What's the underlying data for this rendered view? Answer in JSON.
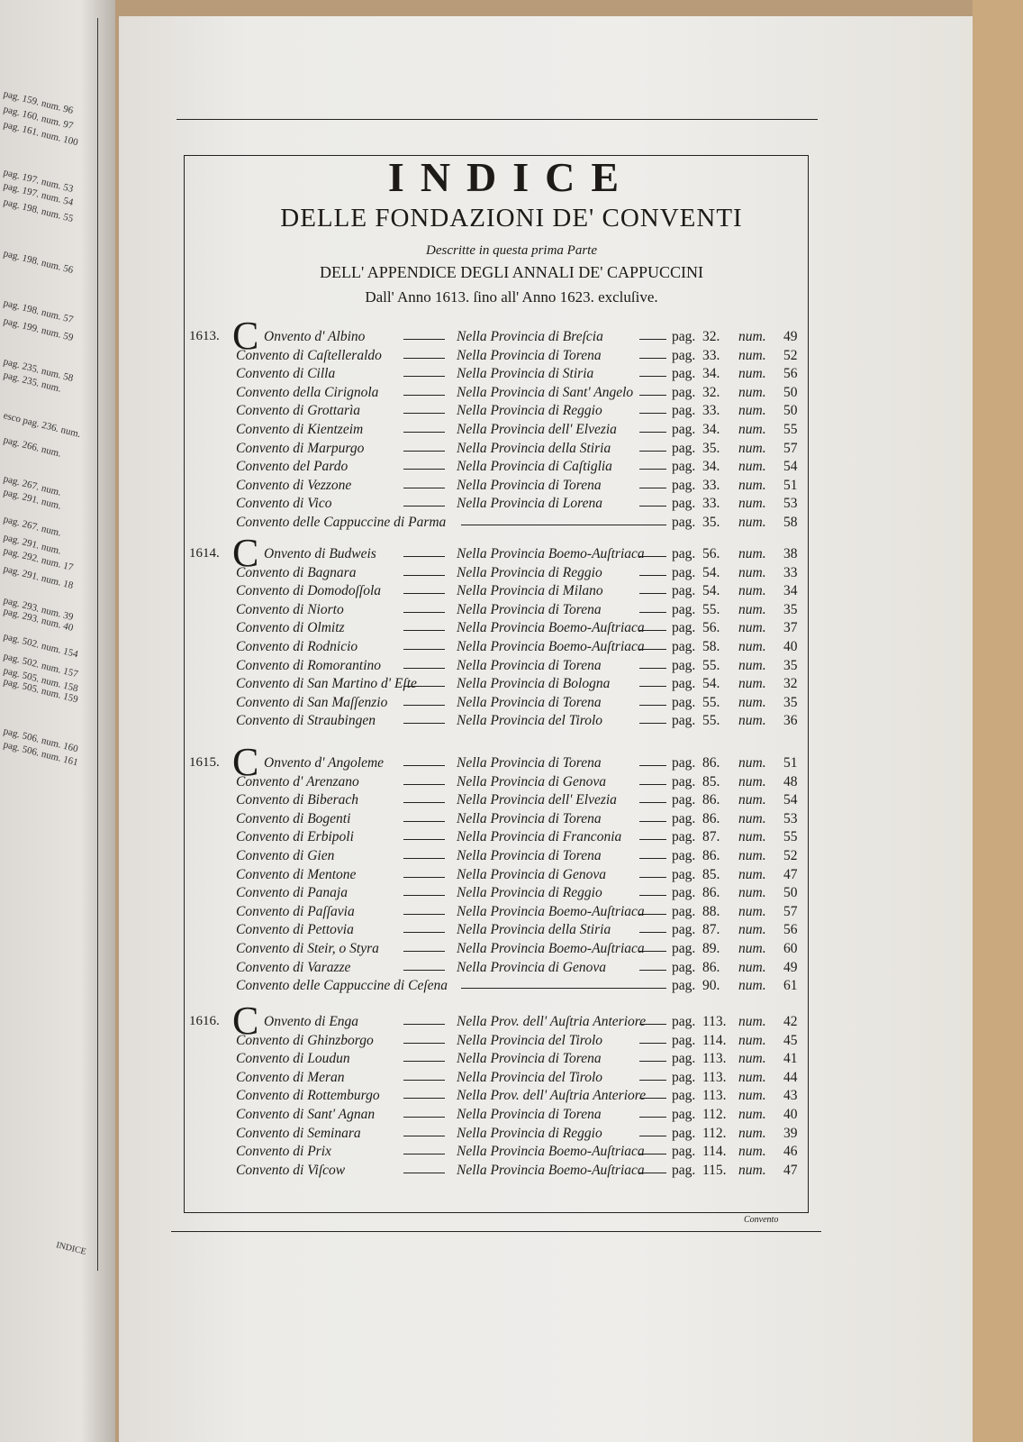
{
  "header": {
    "title": "INDICE",
    "subtitle": "DELLE FONDAZIONI DE' CONVENTI",
    "description": "Descritte in questa prima Parte",
    "appendix": "DELL' APPENDICE DEGLI ANNALI DE' CAPPUCCINI",
    "years": "Dall' Anno 1613. ſino all' Anno 1623. excluſive."
  },
  "sections": [
    {
      "year": "1613.",
      "initial": "C",
      "entries": [
        {
          "convent": "Onvento d' Albino",
          "province": "Nella Provincia di Breſcia",
          "pag": "32.",
          "num": "49"
        },
        {
          "convent": "Convento di Caſtelleraldo",
          "province": "Nella Provincia di Torena",
          "pag": "33.",
          "num": "52"
        },
        {
          "convent": "Convento di Cilla",
          "province": "Nella Provincia di Stiria",
          "pag": "34.",
          "num": "56"
        },
        {
          "convent": "Convento della Cirignola",
          "province": "Nella Provincia di Sant' Angelo",
          "pag": "32.",
          "num": "50"
        },
        {
          "convent": "Convento di Grottarìa",
          "province": "Nella Provincia di Reggio",
          "pag": "33.",
          "num": "50"
        },
        {
          "convent": "Convento di Kientzeim",
          "province": "Nella Provincia dell' Elvezia",
          "pag": "34.",
          "num": "55"
        },
        {
          "convent": "Convento di Marpurgo",
          "province": "Nella Provincia della Stiria",
          "pag": "35.",
          "num": "57"
        },
        {
          "convent": "Convento del Pardo",
          "province": "Nella Provincia di Caſtiglia",
          "pag": "34.",
          "num": "54"
        },
        {
          "convent": "Convento di Vezzone",
          "province": "Nella Provincia di Torena",
          "pag": "33.",
          "num": "51"
        },
        {
          "convent": "Convento di Vico",
          "province": "Nella Provincia di Lorena",
          "pag": "33.",
          "num": "53"
        },
        {
          "convent": "Convento delle Cappuccine di Parma",
          "province": "",
          "pag": "35.",
          "num": "58"
        }
      ]
    },
    {
      "year": "1614.",
      "initial": "C",
      "entries": [
        {
          "convent": "Onvento di Budweis",
          "province": "Nella Provincia Boemo-Auſtriaca",
          "pag": "56.",
          "num": "38"
        },
        {
          "convent": "Convento di Bagnara",
          "province": "Nella Provincia di Reggio",
          "pag": "54.",
          "num": "33"
        },
        {
          "convent": "Convento di Domodoſſola",
          "province": "Nella Provincia di Milano",
          "pag": "54.",
          "num": "34"
        },
        {
          "convent": "Convento di Niorto",
          "province": "Nella Provincia di Torena",
          "pag": "55.",
          "num": "35"
        },
        {
          "convent": "Convento di Olmitz",
          "province": "Nella Provincia Boemo-Auſtriaca",
          "pag": "56.",
          "num": "37"
        },
        {
          "convent": "Convento di Rodnicio",
          "province": "Nella Provincia Boemo-Auſtriaca",
          "pag": "58.",
          "num": "40"
        },
        {
          "convent": "Convento di Romorantino",
          "province": "Nella Provincia di Torena",
          "pag": "55.",
          "num": "35"
        },
        {
          "convent": "Convento di San Martino d' Eſte",
          "province": "Nella Provincia di Bologna",
          "pag": "54.",
          "num": "32"
        },
        {
          "convent": "Convento di San Maſſenzio",
          "province": "Nella Provincia di Torena",
          "pag": "55.",
          "num": "35"
        },
        {
          "convent": "Convento di Straubingen",
          "province": "Nella Provincia del Tirolo",
          "pag": "55.",
          "num": "36"
        }
      ]
    },
    {
      "year": "1615.",
      "initial": "C",
      "entries": [
        {
          "convent": "Onvento d' Angoleme",
          "province": "Nella Provincia di Torena",
          "pag": "86.",
          "num": "51"
        },
        {
          "convent": "Convento d' Arenzano",
          "province": "Nella Provincia di Genova",
          "pag": "85.",
          "num": "48"
        },
        {
          "convent": "Convento di Biberach",
          "province": "Nella Provincia dell' Elvezia",
          "pag": "86.",
          "num": "54"
        },
        {
          "convent": "Convento di Bogenti",
          "province": "Nella Provincia di Torena",
          "pag": "86.",
          "num": "53"
        },
        {
          "convent": "Convento di Erbipoli",
          "province": "Nella Provincia di Franconia",
          "pag": "87.",
          "num": "55"
        },
        {
          "convent": "Convento di Gien",
          "province": "Nella Provincia di Torena",
          "pag": "86.",
          "num": "52"
        },
        {
          "convent": "Convento di Mentone",
          "province": "Nella Provincia di Genova",
          "pag": "85.",
          "num": "47"
        },
        {
          "convent": "Convento di Panaja",
          "province": "Nella Provincia di Reggio",
          "pag": "86.",
          "num": "50"
        },
        {
          "convent": "Convento di Paſſavia",
          "province": "Nella Provincia Boemo-Auſtriaca",
          "pag": "88.",
          "num": "57"
        },
        {
          "convent": "Convento di Pettovia",
          "province": "Nella Provincia della Stiria",
          "pag": "87.",
          "num": "56"
        },
        {
          "convent": "Convento di Steir, o Styra",
          "province": "Nella Provincia Boemo-Auſtriaca",
          "pag": "89.",
          "num": "60"
        },
        {
          "convent": "Convento di Varazze",
          "province": "Nella Provincia di Genova",
          "pag": "86.",
          "num": "49"
        },
        {
          "convent": "Convento delle Cappuccine di Ceſena",
          "province": "",
          "pag": "90.",
          "num": "61"
        }
      ]
    },
    {
      "year": "1616.",
      "initial": "C",
      "entries": [
        {
          "convent": "Onvento di Enga",
          "province": "Nella Prov. dell' Auſtria Anteriore",
          "pag": "113.",
          "num": "42"
        },
        {
          "convent": "Convento di Ghinzborgo",
          "province": "Nella Provincia del Tirolo",
          "pag": "114.",
          "num": "45"
        },
        {
          "convent": "Convento di Loudun",
          "province": "Nella Provincia di Torena",
          "pag": "113.",
          "num": "41"
        },
        {
          "convent": "Convento di Meran",
          "province": "Nella Provincia del Tirolo",
          "pag": "113.",
          "num": "44"
        },
        {
          "convent": "Convento di Rottemburgo",
          "province": "Nella Prov. dell' Auſtria Anteriore",
          "pag": "113.",
          "num": "43"
        },
        {
          "convent": "Convento di Sant' Agnan",
          "province": "Nella Provincia di Torena",
          "pag": "112.",
          "num": "40"
        },
        {
          "convent": "Convento di Seminara",
          "province": "Nella Provincia di Reggio",
          "pag": "112.",
          "num": "39"
        },
        {
          "convent": "Convento di Prix",
          "province": "Nella Provincia Boemo-Auſtriaca",
          "pag": "114.",
          "num": "46"
        },
        {
          "convent": "Convento di Viſcow",
          "province": "Nella Provincia Boemo-Auſtriaca",
          "pag": "115.",
          "num": "47"
        }
      ]
    }
  ],
  "labels": {
    "pag": "pag.",
    "num": "num."
  },
  "catchword": "Convento",
  "left_page": {
    "items": [
      "pag. 159. num. 96",
      "pag. 160. num. 97",
      "pag. 161. num. 100",
      "pag. 197. num. 53",
      "pag. 197. num. 54",
      "pag. 198. num. 55",
      "pag. 198. num. 56",
      "pag. 198. num. 57",
      "pag. 199. num. 59",
      "pag. 235. num. 58",
      "pag. 235. num.",
      "esco pag. 236. num.",
      "pag. 266. num.",
      "pag. 267. num.",
      "pag. 267. num.",
      "pag. 291. num.",
      "pag. 291. num.",
      "pag. 292. num. 17",
      "pag. 291. num. 18",
      "pag. 293. num. 39",
      "pag. 293. num. 40",
      "pag. 502. num. 154",
      "pag. 502. num. 157",
      "pag. 505. num. 158",
      "pag. 505. num. 159",
      "pag. 506. num. 160",
      "pag. 506. num. 161"
    ],
    "footer": "INDICE"
  }
}
